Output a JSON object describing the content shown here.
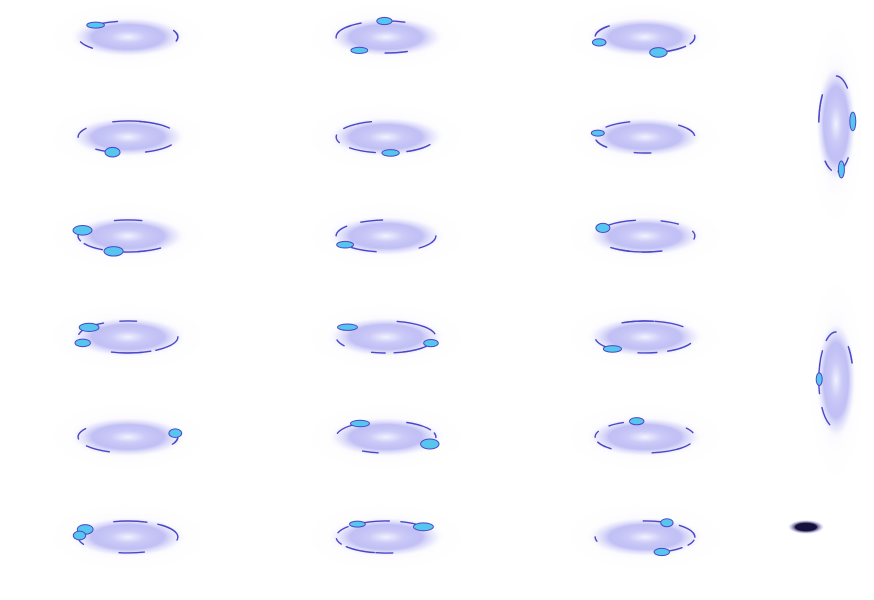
{
  "sheet": {
    "background": "#ffffff",
    "colors": {
      "glow_core": "#eef0ff",
      "glow_mid": "#b9b7f4",
      "glow_edge": "#d9d8fb",
      "outline": "#4b47c8",
      "highlight": "#56c6ef",
      "shadow": "#14123c"
    },
    "frames": [
      {
        "kind": "ring-horizontal",
        "variant": 0
      },
      {
        "kind": "ring-horizontal",
        "variant": 1
      },
      {
        "kind": "ring-horizontal",
        "variant": 2
      },
      {
        "kind": "ring-horizontal",
        "variant": 3
      },
      {
        "kind": "ring-horizontal",
        "variant": 4
      },
      {
        "kind": "ring-horizontal",
        "variant": 5
      },
      {
        "kind": "ring-horizontal",
        "variant": 6
      },
      {
        "kind": "ring-horizontal",
        "variant": 7
      },
      {
        "kind": "ring-horizontal",
        "variant": 8
      },
      {
        "kind": "ring-horizontal",
        "variant": 9
      },
      {
        "kind": "ring-horizontal",
        "variant": 10
      },
      {
        "kind": "ring-horizontal",
        "variant": 11
      },
      {
        "kind": "ring-horizontal",
        "variant": 12
      },
      {
        "kind": "ring-horizontal",
        "variant": 13
      },
      {
        "kind": "ring-horizontal",
        "variant": 14
      },
      {
        "kind": "ring-horizontal",
        "variant": 15
      },
      {
        "kind": "ring-horizontal",
        "variant": 16
      },
      {
        "kind": "ring-horizontal",
        "variant": 17
      },
      {
        "kind": "ring-vertical",
        "variant": 0
      },
      {
        "kind": "ring-vertical",
        "variant": 1
      },
      {
        "kind": "shadow-blob",
        "variant": 0
      }
    ]
  }
}
